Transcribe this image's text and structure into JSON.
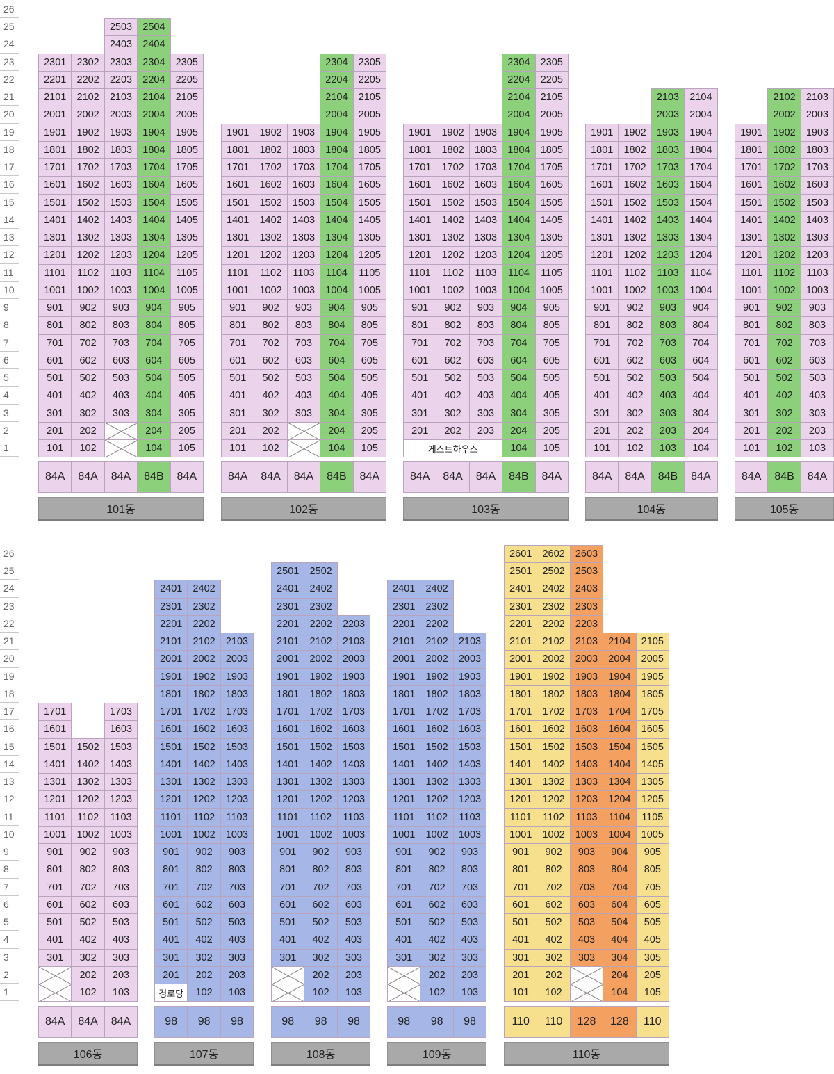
{
  "colors": {
    "pink": "#ecd3ec",
    "green": "#8cd07c",
    "blue": "#a5b6e7",
    "yellow": "#f6e08e",
    "orange": "#f3a060",
    "label_bg": "#a9a9a9",
    "border": "#b9a4bd"
  },
  "floors": [
    "26",
    "25",
    "24",
    "23",
    "22",
    "21",
    "20",
    "19",
    "18",
    "17",
    "16",
    "15",
    "14",
    "13",
    "12",
    "11",
    "10",
    "9",
    "8",
    "7",
    "6",
    "5",
    "4",
    "3",
    "2",
    "1"
  ],
  "buildings": [
    {
      "name": "101동",
      "block": "top",
      "columns": [
        {
          "unit": 1,
          "min": 1,
          "max": 23,
          "type": "84A",
          "color": "pink"
        },
        {
          "unit": 2,
          "min": 1,
          "max": 23,
          "type": "84A",
          "color": "pink"
        },
        {
          "unit": 3,
          "min": 1,
          "max": 25,
          "type": "84A",
          "color": "pink",
          "empty": [
            1,
            2
          ]
        },
        {
          "unit": 4,
          "min": 1,
          "max": 25,
          "type": "84B",
          "color": "green",
          "labels": {
            "25": "2504",
            "24": "2404"
          }
        },
        {
          "unit": 5,
          "min": 1,
          "max": 23,
          "type": "84A",
          "color": "pink"
        }
      ]
    },
    {
      "name": "102동",
      "block": "top",
      "columns": [
        {
          "unit": 1,
          "min": 1,
          "max": 19,
          "type": "84A",
          "color": "pink"
        },
        {
          "unit": 2,
          "min": 1,
          "max": 19,
          "type": "84A",
          "color": "pink"
        },
        {
          "unit": 3,
          "min": 1,
          "max": 19,
          "type": "84A",
          "color": "pink",
          "empty": [
            1,
            2
          ]
        },
        {
          "unit": 4,
          "min": 1,
          "max": 23,
          "type": "84B",
          "color": "green"
        },
        {
          "unit": 5,
          "min": 1,
          "max": 23,
          "type": "84A",
          "color": "pink"
        }
      ]
    },
    {
      "name": "103동",
      "block": "top",
      "columns": [
        {
          "unit": 1,
          "min": 1,
          "max": 19,
          "type": "84A",
          "color": "pink"
        },
        {
          "unit": 2,
          "min": 1,
          "max": 19,
          "type": "84A",
          "color": "pink"
        },
        {
          "unit": 3,
          "min": 1,
          "max": 19,
          "type": "84A",
          "color": "pink"
        },
        {
          "unit": 4,
          "min": 1,
          "max": 23,
          "type": "84B",
          "color": "green"
        },
        {
          "unit": 5,
          "min": 1,
          "max": 23,
          "type": "84A",
          "color": "pink"
        }
      ],
      "merged": [
        {
          "floor": 1,
          "from": 1,
          "to": 3,
          "label": "게스트하우스"
        }
      ]
    },
    {
      "name": "104동",
      "block": "top",
      "columns": [
        {
          "unit": 1,
          "min": 1,
          "max": 19,
          "type": "84A",
          "color": "pink"
        },
        {
          "unit": 2,
          "min": 1,
          "max": 19,
          "type": "84A",
          "color": "pink"
        },
        {
          "unit": 3,
          "min": 1,
          "max": 21,
          "type": "84B",
          "color": "green",
          "labels": {
            "21": "2103",
            "20": "2003"
          }
        },
        {
          "unit": 4,
          "min": 1,
          "max": 21,
          "type": "84A",
          "color": "pink"
        }
      ]
    },
    {
      "name": "105동",
      "block": "top",
      "columns": [
        {
          "unit": 1,
          "min": 1,
          "max": 19,
          "type": "84A",
          "color": "pink"
        },
        {
          "unit": 2,
          "min": 1,
          "max": 21,
          "type": "84B",
          "color": "green",
          "labels": {
            "21": "2102",
            "20": "2002"
          }
        },
        {
          "unit": 3,
          "min": 1,
          "max": 21,
          "type": "84A",
          "color": "pink"
        }
      ]
    },
    {
      "name": "106동",
      "block": "bottom",
      "columns": [
        {
          "unit": 1,
          "min": 1,
          "max": 17,
          "type": "84A",
          "color": "pink",
          "empty": [
            1,
            2
          ]
        },
        {
          "unit": 2,
          "min": 1,
          "max": 15,
          "type": "84A",
          "color": "pink"
        },
        {
          "unit": 3,
          "min": 1,
          "max": 17,
          "type": "84A",
          "color": "pink"
        }
      ]
    },
    {
      "name": "107동",
      "block": "bottom",
      "columns": [
        {
          "unit": 1,
          "min": 1,
          "max": 24,
          "type": "98",
          "color": "blue",
          "labels": {
            "1": "경로당"
          }
        },
        {
          "unit": 2,
          "min": 1,
          "max": 24,
          "type": "98",
          "color": "blue"
        },
        {
          "unit": 3,
          "min": 1,
          "max": 21,
          "type": "98",
          "color": "blue"
        }
      ]
    },
    {
      "name": "108동",
      "block": "bottom",
      "columns": [
        {
          "unit": 1,
          "min": 1,
          "max": 25,
          "type": "98",
          "color": "blue",
          "empty": [
            1,
            2
          ]
        },
        {
          "unit": 2,
          "min": 1,
          "max": 25,
          "type": "98",
          "color": "blue"
        },
        {
          "unit": 3,
          "min": 1,
          "max": 22,
          "type": "98",
          "color": "blue"
        }
      ]
    },
    {
      "name": "109동",
      "block": "bottom",
      "columns": [
        {
          "unit": 1,
          "min": 1,
          "max": 24,
          "type": "98",
          "color": "blue",
          "empty": [
            1,
            2
          ]
        },
        {
          "unit": 2,
          "min": 1,
          "max": 24,
          "type": "98",
          "color": "blue"
        },
        {
          "unit": 3,
          "min": 1,
          "max": 21,
          "type": "98",
          "color": "blue"
        }
      ]
    },
    {
      "name": "110동",
      "block": "bottom",
      "columns": [
        {
          "unit": 1,
          "min": 1,
          "max": 26,
          "type": "110",
          "color": "yellow"
        },
        {
          "unit": 2,
          "min": 1,
          "max": 26,
          "type": "110",
          "color": "yellow"
        },
        {
          "unit": 3,
          "min": 1,
          "max": 26,
          "type": "128",
          "color": "orange",
          "empty": [
            1,
            2
          ]
        },
        {
          "unit": 4,
          "min": 1,
          "max": 21,
          "type": "128",
          "color": "orange"
        },
        {
          "unit": 5,
          "min": 1,
          "max": 21,
          "type": "110",
          "color": "yellow"
        }
      ]
    }
  ]
}
